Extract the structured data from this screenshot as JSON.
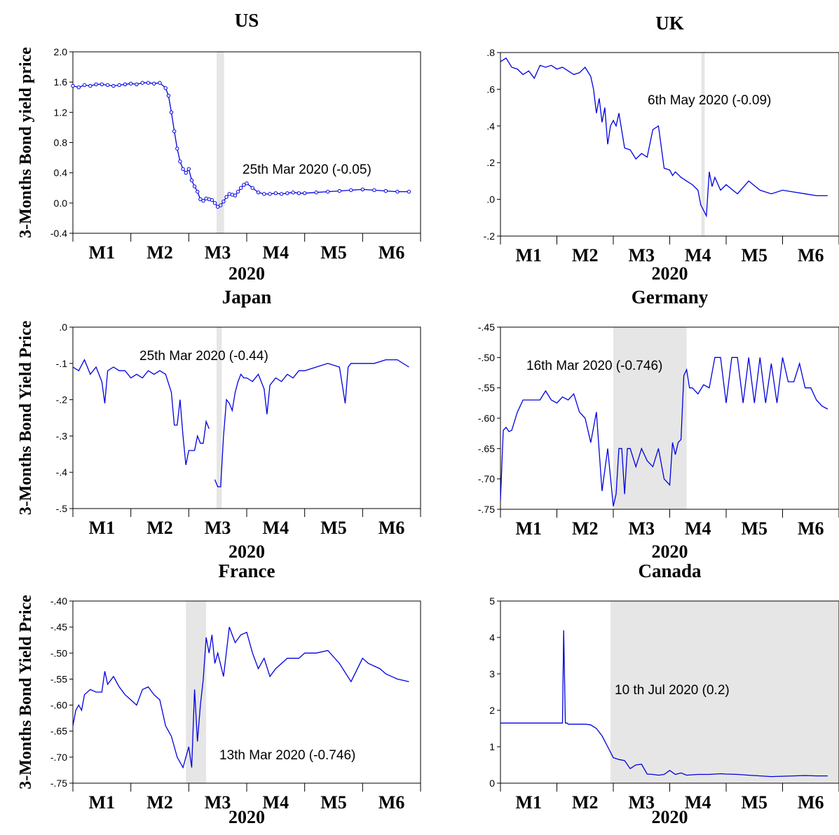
{
  "chart_data": [
    {
      "type": "line",
      "title": "US",
      "xlabel": "2020",
      "ylabel": "3-Months Bond yield price",
      "x_tick_labels": [
        "M1",
        "M2",
        "M3",
        "M4",
        "M5",
        "M6"
      ],
      "y_tick_labels": [
        "-0.4",
        "0.0",
        "0.4",
        "0.8",
        "1.2",
        "1.6",
        "2.0"
      ],
      "ylim": [
        -0.4,
        2.0
      ],
      "grid": false,
      "shaded_period": [
        3.48,
        3.61
      ],
      "annotation": "25th Mar 2020 (-0.05)",
      "markers": true,
      "line_color": "#0000e0",
      "series": [
        {
          "x": [
            1.0,
            1.1,
            1.2,
            1.3,
            1.4,
            1.5,
            1.6,
            1.7,
            1.8,
            1.9,
            2.0,
            2.1,
            2.2,
            2.3,
            2.4,
            2.5,
            2.6,
            2.65,
            2.7,
            2.75,
            2.8,
            2.85,
            2.9,
            2.95,
            3.0,
            3.05,
            3.1,
            3.15,
            3.2,
            3.25,
            3.3,
            3.35,
            3.4,
            3.45,
            3.5,
            3.55,
            3.6,
            3.65,
            3.7,
            3.75,
            3.8,
            3.85,
            3.9,
            3.95,
            4.0,
            4.1,
            4.2,
            4.3,
            4.4,
            4.5,
            4.6,
            4.7,
            4.8,
            4.9,
            5.0,
            5.2,
            5.4,
            5.6,
            5.8,
            6.0,
            6.2,
            6.4,
            6.6,
            6.8
          ],
          "y": [
            1.55,
            1.53,
            1.56,
            1.55,
            1.57,
            1.57,
            1.56,
            1.55,
            1.56,
            1.57,
            1.58,
            1.57,
            1.59,
            1.59,
            1.58,
            1.59,
            1.52,
            1.42,
            1.2,
            0.95,
            0.72,
            0.55,
            0.45,
            0.4,
            0.45,
            0.3,
            0.22,
            0.15,
            0.05,
            0.03,
            0.06,
            0.05,
            0.04,
            0.0,
            -0.05,
            -0.03,
            0.02,
            0.08,
            0.12,
            0.11,
            0.1,
            0.15,
            0.2,
            0.24,
            0.26,
            0.2,
            0.14,
            0.12,
            0.12,
            0.13,
            0.12,
            0.13,
            0.14,
            0.13,
            0.13,
            0.14,
            0.15,
            0.16,
            0.17,
            0.18,
            0.17,
            0.16,
            0.15,
            0.15
          ]
        }
      ]
    },
    {
      "type": "line",
      "title": "UK",
      "xlabel": "2020",
      "ylabel": "",
      "x_tick_labels": [
        "M1",
        "M2",
        "M3",
        "M4",
        "M5",
        "M6"
      ],
      "y_tick_labels": [
        "-.2",
        ".0",
        ".2",
        ".4",
        ".6",
        ".8"
      ],
      "ylim": [
        -0.2,
        0.8
      ],
      "grid": false,
      "shaded_period": [
        4.56,
        4.62
      ],
      "annotation": "6th May 2020 (-0.09)",
      "line_color": "#0000e0",
      "series": [
        {
          "x": [
            1.0,
            1.1,
            1.2,
            1.3,
            1.4,
            1.5,
            1.6,
            1.7,
            1.8,
            1.9,
            2.0,
            2.1,
            2.2,
            2.3,
            2.4,
            2.5,
            2.6,
            2.65,
            2.7,
            2.75,
            2.8,
            2.85,
            2.9,
            2.95,
            3.0,
            3.05,
            3.1,
            3.2,
            3.3,
            3.4,
            3.5,
            3.6,
            3.7,
            3.8,
            3.9,
            4.0,
            4.05,
            4.1,
            4.2,
            4.3,
            4.4,
            4.5,
            4.55,
            4.6,
            4.65,
            4.7,
            4.75,
            4.8,
            4.9,
            5.0,
            5.2,
            5.4,
            5.6,
            5.8,
            6.0,
            6.2,
            6.4,
            6.6,
            6.8
          ],
          "y": [
            0.75,
            0.77,
            0.72,
            0.71,
            0.68,
            0.7,
            0.66,
            0.73,
            0.72,
            0.73,
            0.71,
            0.72,
            0.7,
            0.68,
            0.69,
            0.72,
            0.67,
            0.6,
            0.47,
            0.55,
            0.42,
            0.5,
            0.3,
            0.4,
            0.43,
            0.4,
            0.47,
            0.28,
            0.27,
            0.22,
            0.25,
            0.23,
            0.38,
            0.4,
            0.17,
            0.16,
            0.13,
            0.15,
            0.12,
            0.1,
            0.08,
            0.05,
            -0.03,
            -0.06,
            -0.09,
            0.15,
            0.07,
            0.12,
            0.05,
            0.08,
            0.03,
            0.1,
            0.05,
            0.03,
            0.05,
            0.04,
            0.03,
            0.02,
            0.02
          ]
        }
      ]
    },
    {
      "type": "line",
      "title": "Japan",
      "xlabel": "2020",
      "ylabel": "3-Months Bond Yield Price",
      "x_tick_labels": [
        "M1",
        "M2",
        "M3",
        "M4",
        "M5",
        "M6"
      ],
      "y_tick_labels": [
        "-.5",
        "-.4",
        "-.3",
        "-.2",
        "-.1",
        ".0"
      ],
      "ylim": [
        -0.5,
        0.0
      ],
      "grid": false,
      "shaded_period": [
        3.48,
        3.57
      ],
      "annotation": "25th Mar 2020 (-0.44)",
      "line_color": "#0000e0",
      "series": [
        {
          "x": [
            1.0,
            1.1,
            1.2,
            1.3,
            1.4,
            1.5,
            1.55,
            1.6,
            1.7,
            1.8,
            1.9,
            2.0,
            2.1,
            2.2,
            2.3,
            2.4,
            2.5,
            2.6,
            2.7,
            2.75,
            2.8,
            2.85,
            2.9,
            2.95,
            3.0,
            3.05,
            3.1,
            3.15,
            3.2,
            3.25,
            3.3,
            3.35
          ],
          "y": [
            -0.11,
            -0.12,
            -0.09,
            -0.13,
            -0.11,
            -0.15,
            -0.21,
            -0.12,
            -0.11,
            -0.12,
            -0.12,
            -0.14,
            -0.13,
            -0.14,
            -0.12,
            -0.13,
            -0.12,
            -0.13,
            -0.18,
            -0.27,
            -0.27,
            -0.2,
            -0.3,
            -0.38,
            -0.34,
            -0.34,
            -0.34,
            -0.3,
            -0.32,
            -0.32,
            -0.26,
            -0.28
          ]
        },
        {
          "x": [
            3.45,
            3.5,
            3.55,
            3.6,
            3.65,
            3.7,
            3.75,
            3.8,
            3.85,
            3.9,
            3.95,
            4.0,
            4.1,
            4.2,
            4.3,
            4.35,
            4.4,
            4.5,
            4.6,
            4.7,
            4.8,
            4.9,
            5.0,
            5.2,
            5.4,
            5.6,
            5.7,
            5.75,
            5.8,
            6.0,
            6.2,
            6.4,
            6.6,
            6.8
          ],
          "y": [
            -0.42,
            -0.44,
            -0.44,
            -0.3,
            -0.2,
            -0.21,
            -0.23,
            -0.18,
            -0.15,
            -0.13,
            -0.14,
            -0.14,
            -0.15,
            -0.13,
            -0.17,
            -0.24,
            -0.16,
            -0.14,
            -0.15,
            -0.13,
            -0.14,
            -0.12,
            -0.12,
            -0.11,
            -0.1,
            -0.11,
            -0.21,
            -0.11,
            -0.1,
            -0.1,
            -0.1,
            -0.09,
            -0.09,
            -0.11
          ]
        }
      ]
    },
    {
      "type": "line",
      "title": "Germany",
      "xlabel": "2020",
      "ylabel": "",
      "x_tick_labels": [
        "M1",
        "M2",
        "M3",
        "M4",
        "M5",
        "M6"
      ],
      "y_tick_labels": [
        "-.75",
        "-.70",
        "-.65",
        "-.60",
        "-.55",
        "-.50",
        "-.45"
      ],
      "ylim": [
        -0.75,
        -0.45
      ],
      "grid": false,
      "shaded_period": [
        3.0,
        4.3
      ],
      "annotation": "16th Mar 2020 (-0.746)",
      "line_color": "#0000e0",
      "series": [
        {
          "x": [
            1.0,
            1.05,
            1.1,
            1.15,
            1.2,
            1.3,
            1.4,
            1.5,
            1.6,
            1.7,
            1.8,
            1.9,
            2.0,
            2.1,
            2.2,
            2.3,
            2.4,
            2.5,
            2.6,
            2.7,
            2.8,
            2.9,
            3.0,
            3.05,
            3.1,
            3.15,
            3.2,
            3.25,
            3.3,
            3.4,
            3.5,
            3.6,
            3.7,
            3.8,
            3.9,
            4.0,
            4.05,
            4.1,
            4.15,
            4.2,
            4.25,
            4.3,
            4.35,
            4.4,
            4.5,
            4.6,
            4.7,
            4.8,
            4.9,
            5.0,
            5.1,
            5.2,
            5.3,
            5.4,
            5.5,
            5.6,
            5.7,
            5.8,
            5.9,
            6.0,
            6.1,
            6.2,
            6.3,
            6.4,
            6.5,
            6.6,
            6.7,
            6.8
          ],
          "y": [
            -0.735,
            -0.62,
            -0.615,
            -0.622,
            -0.62,
            -0.59,
            -0.57,
            -0.57,
            -0.57,
            -0.57,
            -0.555,
            -0.57,
            -0.575,
            -0.565,
            -0.57,
            -0.56,
            -0.59,
            -0.6,
            -0.64,
            -0.59,
            -0.72,
            -0.65,
            -0.745,
            -0.725,
            -0.65,
            -0.65,
            -0.725,
            -0.65,
            -0.65,
            -0.68,
            -0.65,
            -0.67,
            -0.68,
            -0.65,
            -0.7,
            -0.71,
            -0.64,
            -0.66,
            -0.64,
            -0.635,
            -0.53,
            -0.52,
            -0.55,
            -0.55,
            -0.56,
            -0.545,
            -0.55,
            -0.5,
            -0.5,
            -0.575,
            -0.5,
            -0.5,
            -0.575,
            -0.5,
            -0.575,
            -0.5,
            -0.575,
            -0.51,
            -0.575,
            -0.5,
            -0.54,
            -0.54,
            -0.51,
            -0.55,
            -0.55,
            -0.57,
            -0.58,
            -0.585
          ]
        }
      ]
    },
    {
      "type": "line",
      "title": "France",
      "xlabel": "2020",
      "ylabel": "3-Months Bond Yield Price",
      "x_tick_labels": [
        "M1",
        "M2",
        "M3",
        "M4",
        "M5",
        "M6"
      ],
      "y_tick_labels": [
        "-.75",
        "-.70",
        "-.65",
        "-.60",
        "-.55",
        "-.50",
        "-.45",
        "-.40"
      ],
      "ylim": [
        -0.75,
        -0.4
      ],
      "grid": false,
      "shaded_period": [
        2.95,
        3.3
      ],
      "annotation": "13th Mar 2020 (-0.746)",
      "line_color": "#0000e0",
      "series": [
        {
          "x": [
            1.0,
            1.05,
            1.1,
            1.15,
            1.2,
            1.3,
            1.4,
            1.5,
            1.55,
            1.6,
            1.7,
            1.8,
            1.9,
            2.0,
            2.1,
            2.2,
            2.3,
            2.4,
            2.5,
            2.6,
            2.7,
            2.8,
            2.9,
            3.0,
            3.05,
            3.1,
            3.15,
            3.2,
            3.25,
            3.3,
            3.35,
            3.4,
            3.45,
            3.5,
            3.6,
            3.7,
            3.8,
            3.9,
            4.0,
            4.1,
            4.2,
            4.3,
            4.4,
            4.5,
            4.6,
            4.7,
            4.8,
            4.9,
            5.0,
            5.2,
            5.4,
            5.6,
            5.8,
            6.0,
            6.1,
            6.2,
            6.3,
            6.4,
            6.5,
            6.6,
            6.8
          ],
          "y": [
            -0.64,
            -0.61,
            -0.6,
            -0.61,
            -0.58,
            -0.57,
            -0.575,
            -0.575,
            -0.535,
            -0.56,
            -0.545,
            -0.565,
            -0.58,
            -0.59,
            -0.6,
            -0.57,
            -0.565,
            -0.58,
            -0.59,
            -0.64,
            -0.66,
            -0.7,
            -0.72,
            -0.68,
            -0.72,
            -0.57,
            -0.67,
            -0.6,
            -0.55,
            -0.47,
            -0.5,
            -0.465,
            -0.52,
            -0.5,
            -0.545,
            -0.45,
            -0.48,
            -0.465,
            -0.46,
            -0.5,
            -0.53,
            -0.51,
            -0.545,
            -0.53,
            -0.52,
            -0.51,
            -0.51,
            -0.51,
            -0.5,
            -0.5,
            -0.495,
            -0.52,
            -0.555,
            -0.51,
            -0.52,
            -0.525,
            -0.53,
            -0.54,
            -0.545,
            -0.55,
            -0.555
          ]
        }
      ]
    },
    {
      "type": "line",
      "title": "Canada",
      "xlabel": "2020",
      "ylabel": "",
      "x_tick_labels": [
        "M1",
        "M2",
        "M3",
        "M4",
        "M5",
        "M6"
      ],
      "y_tick_labels": [
        "0",
        "1",
        "2",
        "3",
        "4",
        "5"
      ],
      "ylim": [
        0,
        5
      ],
      "grid": false,
      "shaded_period": [
        2.95,
        7.0
      ],
      "annotation": "10 th Jul 2020 (0.2)",
      "line_color": "#0000e0",
      "series": [
        {
          "x": [
            1.0,
            1.5,
            2.0,
            2.1,
            2.12,
            2.15,
            2.18,
            2.2,
            2.5,
            2.6,
            2.7,
            2.8,
            2.9,
            3.0,
            3.1,
            3.2,
            3.3,
            3.4,
            3.5,
            3.6,
            3.7,
            3.8,
            3.9,
            4.0,
            4.1,
            4.2,
            4.3,
            4.5,
            4.7,
            4.9,
            5.0,
            5.2,
            5.4,
            5.6,
            5.8,
            6.0,
            6.2,
            6.4,
            6.6,
            6.8
          ],
          "y": [
            1.65,
            1.65,
            1.65,
            1.65,
            4.2,
            1.65,
            1.65,
            1.62,
            1.62,
            1.6,
            1.5,
            1.3,
            1.0,
            0.7,
            0.65,
            0.62,
            0.4,
            0.5,
            0.52,
            0.25,
            0.24,
            0.22,
            0.24,
            0.35,
            0.24,
            0.28,
            0.22,
            0.24,
            0.24,
            0.26,
            0.25,
            0.24,
            0.22,
            0.2,
            0.18,
            0.19,
            0.2,
            0.21,
            0.2,
            0.2
          ]
        }
      ]
    }
  ]
}
